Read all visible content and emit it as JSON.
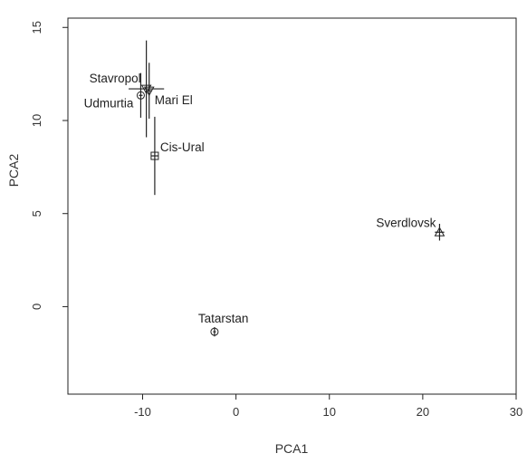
{
  "chart_data": {
    "type": "scatter",
    "xlabel": "PCA1",
    "ylabel": "PCA2",
    "xlim": [
      -18,
      30
    ],
    "ylim": [
      -4.7,
      15.5
    ],
    "x_ticks": [
      -10,
      0,
      10,
      20,
      30
    ],
    "y_ticks": [
      0,
      5,
      10,
      15
    ],
    "grid": false,
    "legend": "none",
    "points": [
      {
        "label": "Stavropol",
        "x": -9.6,
        "y": 11.7,
        "xerr": 1.9,
        "yerr": 2.6,
        "marker": "triangle-down"
      },
      {
        "label": "Mari El",
        "x": -9.3,
        "y": 11.6,
        "xerr": 0.3,
        "yerr": 1.5,
        "marker": "triangle-down"
      },
      {
        "label": "Udmurtia",
        "x": -10.2,
        "y": 11.35,
        "xerr": 0.2,
        "yerr": 1.2,
        "marker": "circle-plus"
      },
      {
        "label": "Cis-Ural",
        "x": -8.7,
        "y": 8.1,
        "xerr": 0.4,
        "yerr": 2.1,
        "marker": "square-plus"
      },
      {
        "label": "Sverdlovsk",
        "x": 21.8,
        "y": 4.0,
        "xerr": 0.5,
        "yerr": 0.45,
        "marker": "triangle-up"
      },
      {
        "label": "Tatarstan",
        "x": -2.3,
        "y": -1.35,
        "xerr": 0.15,
        "yerr": 0.25,
        "marker": "circle-plus"
      }
    ]
  }
}
